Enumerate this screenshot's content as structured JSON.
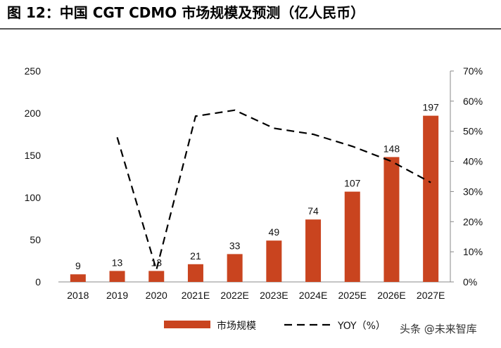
{
  "title": "图 12：中国 CGT CDMO 市场规模及预测（亿人民币）",
  "watermark": "头条 @未来智库",
  "colors": {
    "bar": "#C9441F",
    "line": "#000000"
  },
  "chart_data": {
    "type": "bar",
    "categories": [
      "2018",
      "2019",
      "2020",
      "2021E",
      "2022E",
      "2023E",
      "2024E",
      "2025E",
      "2026E",
      "2027E"
    ],
    "series": [
      {
        "name": "市场规模",
        "type": "bar",
        "axis": "left",
        "values": [
          9,
          13,
          13,
          21,
          33,
          49,
          74,
          107,
          148,
          197
        ],
        "labels": [
          "9",
          "13",
          "13",
          "21",
          "33",
          "49",
          "74",
          "107",
          "148",
          "197"
        ]
      },
      {
        "name": "YOY（%）",
        "type": "line",
        "style": "dashed",
        "axis": "right",
        "values": [
          null,
          48,
          4,
          55,
          57,
          51,
          49,
          45,
          40,
          33
        ]
      }
    ],
    "y_left": {
      "ylim": [
        0,
        250
      ],
      "ticks": [
        "0",
        "50",
        "100",
        "150",
        "200",
        "250"
      ]
    },
    "y_right": {
      "ylim": [
        0,
        70
      ],
      "ticks": [
        "0%",
        "10%",
        "20%",
        "30%",
        "40%",
        "50%",
        "60%",
        "70%"
      ]
    },
    "grid": false,
    "legend": "bottom"
  }
}
